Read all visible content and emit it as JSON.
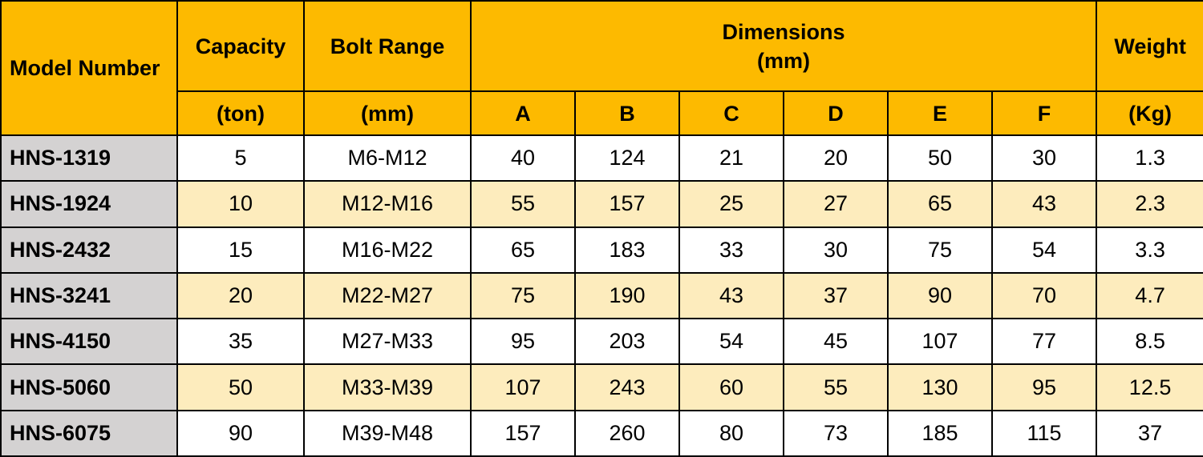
{
  "header": {
    "model": "Model Number",
    "capacity": "Capacity",
    "capacity_unit": "(ton)",
    "bolt_range": "Bolt Range",
    "bolt_range_unit": "(mm)",
    "dimensions": "Dimensions",
    "dimensions_unit": "(mm)",
    "dims": [
      "A",
      "B",
      "C",
      "D",
      "E",
      "F"
    ],
    "weight": "Weight",
    "weight_unit": "(Kg)"
  },
  "rows": [
    [
      "HNS-1319",
      "5",
      "M6-M12",
      "40",
      "124",
      "21",
      "20",
      "50",
      "30",
      "1.3"
    ],
    [
      "HNS-1924",
      "10",
      "M12-M16",
      "55",
      "157",
      "25",
      "27",
      "65",
      "43",
      "2.3"
    ],
    [
      "HNS-2432",
      "15",
      "M16-M22",
      "65",
      "183",
      "33",
      "30",
      "75",
      "54",
      "3.3"
    ],
    [
      "HNS-3241",
      "20",
      "M22-M27",
      "75",
      "190",
      "43",
      "37",
      "90",
      "70",
      "4.7"
    ],
    [
      "HNS-4150",
      "35",
      "M27-M33",
      "95",
      "203",
      "54",
      "45",
      "107",
      "77",
      "8.5"
    ],
    [
      "HNS-5060",
      "50",
      "M33-M39",
      "107",
      "243",
      "60",
      "55",
      "130",
      "95",
      "12.5"
    ],
    [
      "HNS-6075",
      "90",
      "M39-M48",
      "157",
      "260",
      "80",
      "73",
      "185",
      "115",
      "37"
    ]
  ],
  "colors": {
    "header_bg": "#FDBA00",
    "model_bg": "#D4D2D2",
    "row_white": "#FFFFFF",
    "row_tint": "#FDECBD"
  }
}
